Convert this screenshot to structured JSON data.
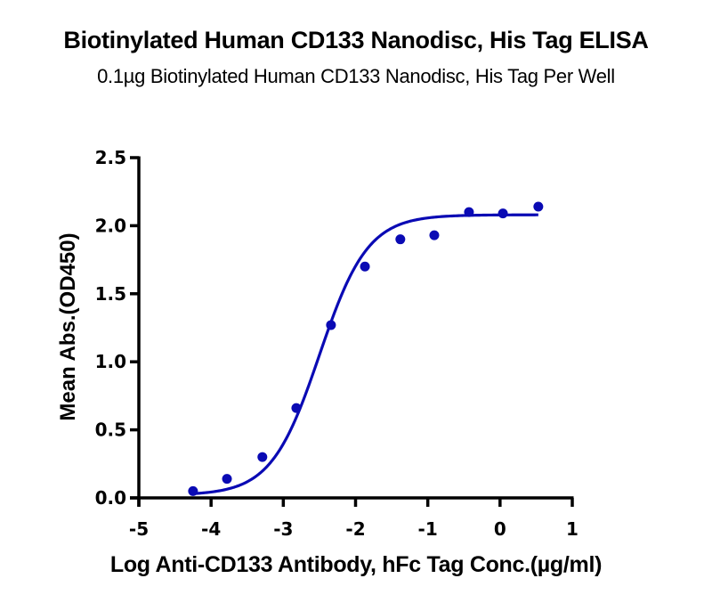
{
  "chart_data": {
    "type": "scatter",
    "title": "Biotinylated Human CD133 Nanodisc, His Tag ELISA",
    "subtitle": "0.1µg Biotinylated Human CD133 Nanodisc, His Tag Per Well",
    "xlabel": "Log Anti-CD133 Antibody, hFc Tag Conc.(µg/ml)",
    "ylabel": "Mean Abs.(OD450)",
    "xlim": [
      -5,
      1
    ],
    "ylim": [
      0,
      2.5
    ],
    "xticks": [
      "-5",
      "-4",
      "-3",
      "-2",
      "-1",
      "0",
      "1"
    ],
    "yticks": [
      "0.0",
      "0.5",
      "1.0",
      "1.5",
      "2.0",
      "2.5"
    ],
    "grid": false,
    "legend": null,
    "series": [
      {
        "name": "Mean Abs.(OD450)",
        "color": "#0a0ab4",
        "x": [
          -4.25,
          -3.78,
          -3.29,
          -2.82,
          -2.34,
          -1.87,
          -1.38,
          -0.91,
          -0.43,
          0.04,
          0.53
        ],
        "y": [
          0.05,
          0.14,
          0.3,
          0.66,
          1.27,
          1.7,
          1.9,
          1.93,
          2.1,
          2.09,
          2.14
        ]
      }
    ],
    "fit_curve": {
      "model": "4PL",
      "bottom": 0.02,
      "top": 2.08,
      "logEC50": -2.5,
      "hill": 1.3,
      "x_range": [
        -4.25,
        0.53
      ],
      "color": "#0a0ab4"
    }
  }
}
